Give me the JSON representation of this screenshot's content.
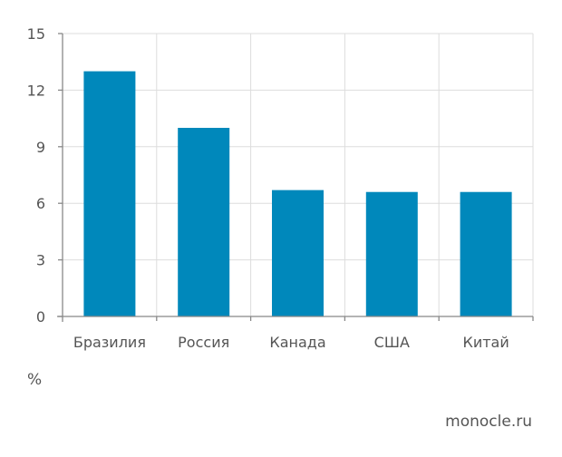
{
  "chart_data": {
    "type": "bar",
    "categories": [
      "Бразилия",
      "Россия",
      "Канада",
      "США",
      "Китай"
    ],
    "values": [
      13,
      10,
      6.7,
      6.6,
      6.6
    ],
    "ylim": [
      0,
      15
    ],
    "yticks": [
      0,
      3,
      6,
      9,
      12,
      15
    ],
    "grid": true,
    "unit": "%",
    "bar_color": "#0088bb",
    "grid_color": "#dddddd",
    "axis_color": "#888888"
  },
  "source": "monocle.ru"
}
